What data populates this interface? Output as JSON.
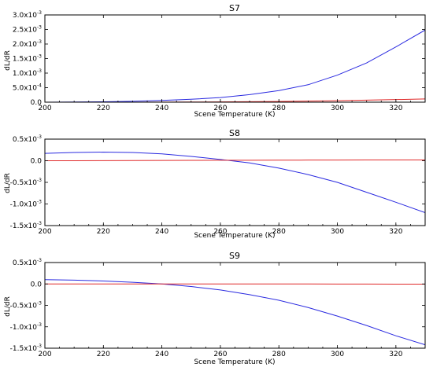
{
  "chart_data": [
    {
      "type": "line",
      "title": "S7",
      "xlabel": "Scene Temperature (K)",
      "ylabel": "dL/dR",
      "xlim": [
        200,
        330
      ],
      "ylim": [
        0,
        0.003
      ],
      "x_ticks": [
        200,
        220,
        240,
        260,
        280,
        300,
        320
      ],
      "y_ticks": [
        {
          "value": 0.0,
          "label": "0.0"
        },
        {
          "value": 0.0005,
          "label": "5.0x10",
          "exp": "-4"
        },
        {
          "value": 0.001,
          "label": "1.0x10",
          "exp": "-3"
        },
        {
          "value": 0.0015,
          "label": "1.5x10",
          "exp": "-3"
        },
        {
          "value": 0.002,
          "label": "2.0x10",
          "exp": "-3"
        },
        {
          "value": 0.0025,
          "label": "2.5x10",
          "exp": "-3"
        },
        {
          "value": 0.003,
          "label": "3.0x10",
          "exp": "-3"
        }
      ],
      "x": [
        200,
        210,
        220,
        230,
        240,
        250,
        260,
        270,
        280,
        290,
        300,
        310,
        320,
        330
      ],
      "series": [
        {
          "color": "#2a2ae0",
          "values": [
            0.0,
            5e-06,
            1.5e-05,
            3e-05,
            6e-05,
            0.0001,
            0.00016,
            0.00026,
            0.0004,
            0.0006,
            0.00093,
            0.00135,
            0.0019,
            0.00248
          ]
        },
        {
          "color": "#e02a2a",
          "values": [
            0.0,
            0.0,
            0.0,
            0.0,
            3e-06,
            6e-06,
            1e-05,
            1.6e-05,
            2.5e-05,
            3.7e-05,
            5.2e-05,
            7e-05,
            9e-05,
            0.00011
          ]
        }
      ],
      "grid": false
    },
    {
      "type": "line",
      "title": "S8",
      "xlabel": "Scene Temperature (K)",
      "ylabel": "dL/dR",
      "xlim": [
        200,
        330
      ],
      "ylim": [
        -0.0015,
        0.0005
      ],
      "x_ticks": [
        200,
        220,
        240,
        260,
        280,
        300,
        320
      ],
      "y_ticks": [
        {
          "value": 0.0005,
          "label": "0.5x10",
          "exp": "-3"
        },
        {
          "value": 0.0,
          "label": "0.0"
        },
        {
          "value": -0.0005,
          "label": "-0.5x10",
          "exp": "-3"
        },
        {
          "value": -0.001,
          "label": "-1.0x10",
          "exp": "-3"
        },
        {
          "value": -0.0015,
          "label": "-1.5x10",
          "exp": "-3"
        }
      ],
      "x": [
        200,
        210,
        220,
        230,
        240,
        250,
        260,
        270,
        280,
        290,
        300,
        310,
        320,
        330
      ],
      "series": [
        {
          "color": "#2a2ae0",
          "values": [
            0.00017,
            0.00019,
            0.0002,
            0.00019,
            0.00016,
            0.0001,
            3e-05,
            -5e-05,
            -0.00017,
            -0.00032,
            -0.0005,
            -0.00073,
            -0.00096,
            -0.0012
          ]
        },
        {
          "color": "#e02a2a",
          "values": [
            0.0,
            0.0,
            3e-06,
            5e-06,
            7e-06,
            9e-06,
            1.1e-05,
            1.2e-05,
            1.4e-05,
            1.5e-05,
            1.6e-05,
            1.7e-05,
            1.8e-05,
            1.8e-05
          ]
        }
      ],
      "grid": false
    },
    {
      "type": "line",
      "title": "S9",
      "xlabel": "Scene Temperature (K)",
      "ylabel": "dL/dR",
      "xlim": [
        200,
        330
      ],
      "ylim": [
        -0.0015,
        0.0005
      ],
      "x_ticks": [
        200,
        220,
        240,
        260,
        280,
        300,
        320
      ],
      "y_ticks": [
        {
          "value": 0.0005,
          "label": "0.5x10",
          "exp": "-3"
        },
        {
          "value": 0.0,
          "label": "0.0"
        },
        {
          "value": -0.0005,
          "label": "-0.5x10",
          "exp": "-3"
        },
        {
          "value": -0.001,
          "label": "-1.0x10",
          "exp": "-3"
        },
        {
          "value": -0.0015,
          "label": "-1.5x10",
          "exp": "-3"
        }
      ],
      "x": [
        200,
        210,
        220,
        230,
        240,
        250,
        260,
        270,
        280,
        290,
        300,
        310,
        320,
        330
      ],
      "series": [
        {
          "color": "#2a2ae0",
          "values": [
            0.0001,
            9e-05,
            7e-05,
            4e-05,
            0.0,
            -6e-05,
            -0.00014,
            -0.00025,
            -0.00038,
            -0.00055,
            -0.00075,
            -0.00097,
            -0.00121,
            -0.00142
          ]
        },
        {
          "color": "#e02a2a",
          "values": [
            0.0,
            0.0,
            0.0,
            0.0,
            0.0,
            0.0,
            0.0,
            0.0,
            0.0,
            0.0,
            -2e-06,
            -3e-06,
            -4e-06,
            -5e-06
          ]
        }
      ],
      "grid": false
    }
  ]
}
